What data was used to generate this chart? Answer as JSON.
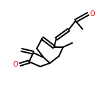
{
  "background_color": "#ffffff",
  "line_color": "#000000",
  "oxygen_color": "#ff0000",
  "line_width": 1.5,
  "figsize": [
    1.5,
    1.5
  ],
  "dpi": 100
}
